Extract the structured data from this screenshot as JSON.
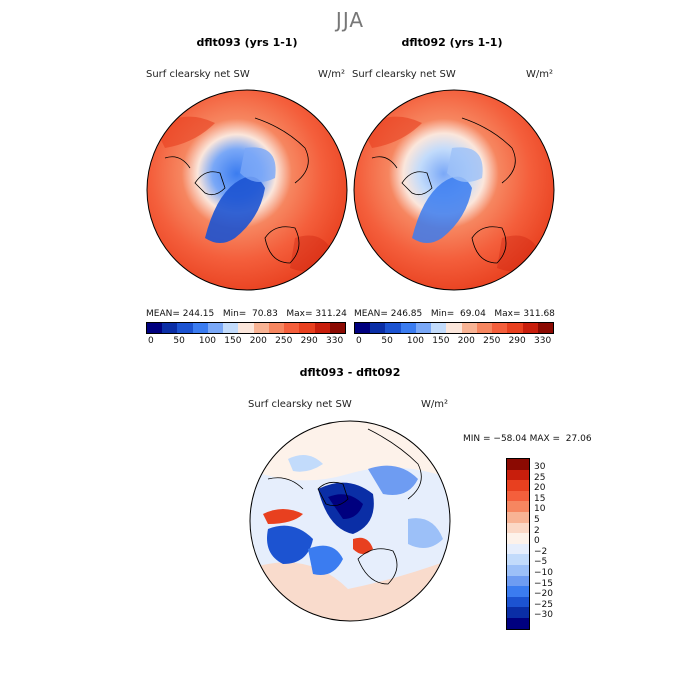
{
  "season": "JJA",
  "panels": [
    {
      "title": "dflt093 (yrs 1-1)",
      "varname": "Surf clearsky net SW",
      "units": "W/m²",
      "stats": "MEAN= 244.15   Min=  70.83   Max= 311.24"
    },
    {
      "title": "dflt092 (yrs 1-1)",
      "varname": "Surf clearsky net SW",
      "units": "W/m²",
      "stats": "MEAN= 246.85   Min=  69.04   Max= 311.68"
    }
  ],
  "diff": {
    "title": "dflt093 - dflt092",
    "varname": "Surf clearsky net SW",
    "units": "W/m²",
    "stats": "MIN = −58.04 MAX =  27.06"
  },
  "top_colorbar": {
    "colors": [
      "#00007f",
      "#0a2ea6",
      "#1c53d1",
      "#3b7cf0",
      "#7aa8f7",
      "#c2dbfb",
      "#fbe6db",
      "#f8b394",
      "#f68660",
      "#f45f3c",
      "#e8401f",
      "#c81e0c",
      "#8b0a02"
    ],
    "tick_labels": [
      "0",
      "50",
      "100",
      "150",
      "200",
      "250",
      "290",
      "330"
    ]
  },
  "diff_colorbar": {
    "colors": [
      "#8b0a02",
      "#c81e0c",
      "#e8401f",
      "#f45f3c",
      "#f68660",
      "#f8b394",
      "#fbd8c6",
      "#fdf2ea",
      "#e6eefc",
      "#c2dbfb",
      "#9cc0f8",
      "#6e9cf2",
      "#3b7cf0",
      "#1c53d1",
      "#0a2ea6",
      "#00007f"
    ],
    "tick_labels": [
      "30",
      "25",
      "20",
      "15",
      "10",
      "5",
      "2",
      "0",
      "−2",
      "−5",
      "−10",
      "−15",
      "−20",
      "−25",
      "−30"
    ]
  },
  "chart_data": [
    {
      "type": "heatmap",
      "title": "dflt093 (yrs 1-1)",
      "subtitle": "Surf clearsky net SW",
      "units": "W/m²",
      "projection": "north polar stereographic",
      "stats": {
        "mean": 244.15,
        "min": 70.83,
        "max": 311.24
      },
      "levels": [
        0,
        50,
        100,
        150,
        200,
        250,
        290,
        330
      ]
    },
    {
      "type": "heatmap",
      "title": "dflt092 (yrs 1-1)",
      "subtitle": "Surf clearsky net SW",
      "units": "W/m²",
      "projection": "north polar stereographic",
      "stats": {
        "mean": 246.85,
        "min": 69.04,
        "max": 311.68
      },
      "levels": [
        0,
        50,
        100,
        150,
        200,
        250,
        290,
        330
      ]
    },
    {
      "type": "heatmap",
      "title": "dflt093 - dflt092",
      "subtitle": "Surf clearsky net SW",
      "units": "W/m²",
      "projection": "north polar stereographic",
      "stats": {
        "min": -58.04,
        "max": 27.06
      },
      "levels": [
        -30,
        -25,
        -20,
        -15,
        -10,
        -5,
        -2,
        0,
        2,
        5,
        10,
        15,
        20,
        25,
        30
      ]
    }
  ]
}
